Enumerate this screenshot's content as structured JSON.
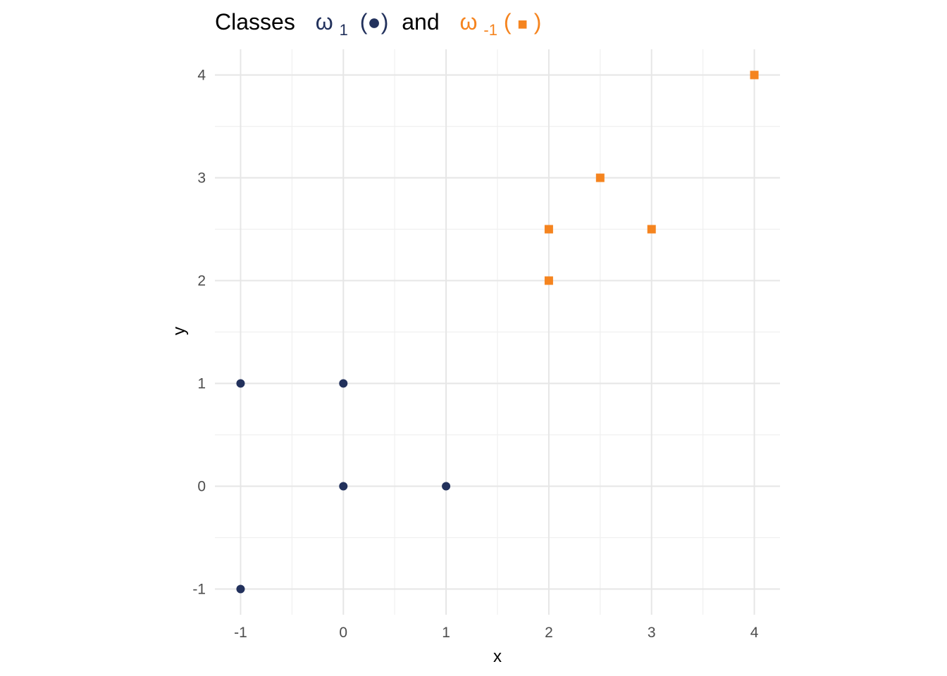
{
  "chart_data": {
    "type": "scatter",
    "title": {
      "prefix": "Classes",
      "class1_symbol": "ω",
      "class1_sub": "1",
      "class1_marker": "(●)",
      "connector": "and",
      "class2_symbol": "ω",
      "class2_sub": "-1",
      "class2_marker_open": "(",
      "class2_marker_close": ")"
    },
    "xlabel": "x",
    "ylabel": "y",
    "xlim": [
      -1.25,
      4.25
    ],
    "ylim": [
      -1.25,
      4.25
    ],
    "x_ticks": [
      -1,
      0,
      1,
      2,
      3,
      4
    ],
    "y_ticks": [
      -1,
      0,
      1,
      2,
      3,
      4
    ],
    "grid": true,
    "legend": "none",
    "series": [
      {
        "marker": "circle",
        "color": "#22315c",
        "points": [
          [
            -1,
            1
          ],
          [
            0,
            1
          ],
          [
            0,
            0
          ],
          [
            1,
            0
          ],
          [
            -1,
            -1
          ]
        ]
      },
      {
        "marker": "square",
        "color": "#f5841f",
        "points": [
          [
            2,
            2
          ],
          [
            2,
            2.5
          ],
          [
            2.5,
            3
          ],
          [
            3,
            2.5
          ],
          [
            4,
            4
          ]
        ]
      }
    ]
  }
}
